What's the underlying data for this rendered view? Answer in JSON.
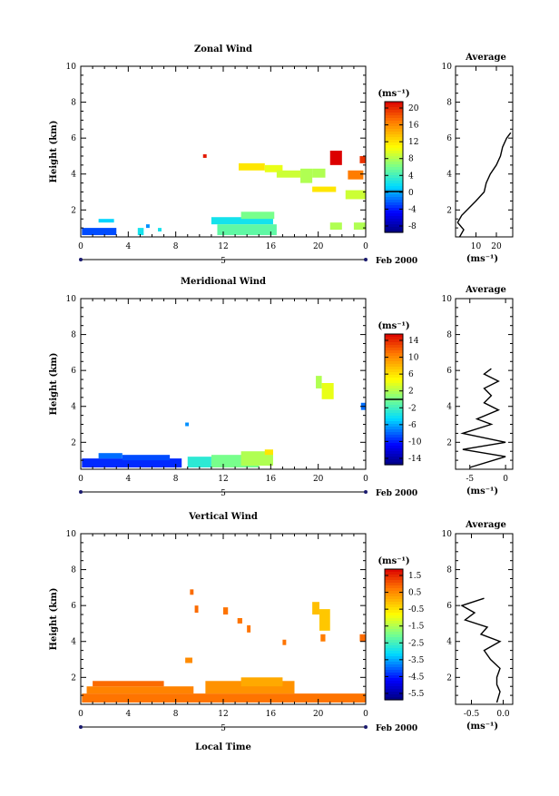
{
  "chart_data": [
    {
      "type": "heatmap",
      "title": "Zonal Wind",
      "xlabel": "",
      "ylabel": "Height (km)",
      "xlim": [
        0,
        24
      ],
      "ylim": [
        0.5,
        10
      ],
      "xticks": [
        "0",
        "4",
        "8",
        "12",
        "16",
        "20",
        "0"
      ],
      "yticks": [
        "2",
        "4",
        "6",
        "8",
        "10"
      ],
      "date_axis": {
        "start_label": "5",
        "end_label": "Feb 2000"
      },
      "colorbar": {
        "unit": "(ms⁻¹)",
        "min": -10,
        "max": 22,
        "ticks": [
          "20",
          "16",
          "12",
          "8",
          "4",
          "0",
          "-4",
          "-8"
        ],
        "mark": 0
      },
      "cells": [
        {
          "x0": 0.1,
          "x1": 3.0,
          "y0": 0.6,
          "y1": 1.0,
          "v": -3
        },
        {
          "x0": 1.5,
          "x1": 2.8,
          "y0": 1.3,
          "y1": 1.5,
          "v": 1
        },
        {
          "x0": 4.8,
          "x1": 5.3,
          "y0": 0.6,
          "y1": 1.0,
          "v": 2
        },
        {
          "x0": 5.5,
          "x1": 5.8,
          "y0": 1.0,
          "y1": 1.2,
          "v": -1
        },
        {
          "x0": 6.5,
          "x1": 6.8,
          "y0": 0.8,
          "y1": 1.0,
          "v": 2
        },
        {
          "x0": 10.3,
          "x1": 10.6,
          "y0": 4.9,
          "y1": 5.1,
          "v": 21
        },
        {
          "x0": 11.0,
          "x1": 16.2,
          "y0": 1.2,
          "y1": 1.6,
          "v": 2
        },
        {
          "x0": 11.5,
          "x1": 16.5,
          "y0": 0.6,
          "y1": 1.2,
          "v": 5
        },
        {
          "x0": 13.5,
          "x1": 16.3,
          "y0": 1.5,
          "y1": 1.9,
          "v": 6
        },
        {
          "x0": 13.3,
          "x1": 15.5,
          "y0": 4.2,
          "y1": 4.6,
          "v": 12
        },
        {
          "x0": 15.5,
          "x1": 17.0,
          "y0": 4.1,
          "y1": 4.5,
          "v": 10
        },
        {
          "x0": 16.5,
          "x1": 18.5,
          "y0": 3.8,
          "y1": 4.2,
          "v": 9
        },
        {
          "x0": 18.5,
          "x1": 19.5,
          "y0": 3.5,
          "y1": 4.3,
          "v": 8
        },
        {
          "x0": 19.5,
          "x1": 20.6,
          "y0": 3.8,
          "y1": 4.3,
          "v": 8
        },
        {
          "x0": 19.5,
          "x1": 21.5,
          "y0": 3.0,
          "y1": 3.3,
          "v": 12
        },
        {
          "x0": 21.0,
          "x1": 22.0,
          "y0": 4.5,
          "y1": 5.3,
          "v": 22
        },
        {
          "x0": 22.5,
          "x1": 23.8,
          "y0": 3.7,
          "y1": 4.2,
          "v": 17
        },
        {
          "x0": 23.5,
          "x1": 24.0,
          "y0": 4.6,
          "y1": 5.0,
          "v": 20
        },
        {
          "x0": 22.3,
          "x1": 24.0,
          "y0": 2.6,
          "y1": 3.1,
          "v": 9
        },
        {
          "x0": 21.0,
          "x1": 22.0,
          "y0": 0.9,
          "y1": 1.3,
          "v": 8
        },
        {
          "x0": 23.0,
          "x1": 24.0,
          "y0": 0.9,
          "y1": 1.3,
          "v": 8
        }
      ],
      "profile": {
        "title": "Average",
        "unit": "(ms⁻¹)",
        "xlim": [
          0,
          28
        ],
        "xticks": [
          "10",
          "20"
        ],
        "height": [
          0.5,
          0.9,
          1.3,
          1.7,
          2.5,
          3.0,
          3.5,
          4.0,
          4.5,
          5.0,
          5.5,
          6.0,
          6.3
        ],
        "speed": [
          2,
          4,
          1,
          3,
          10,
          14,
          15,
          17,
          20,
          22,
          23,
          25,
          27
        ]
      }
    },
    {
      "type": "heatmap",
      "title": "Meridional Wind",
      "xlabel": "",
      "ylabel": "Height (km)",
      "xlim": [
        0,
        24
      ],
      "ylim": [
        0.5,
        10
      ],
      "xticks": [
        "0",
        "4",
        "8",
        "12",
        "16",
        "20",
        "0"
      ],
      "yticks": [
        "2",
        "4",
        "6",
        "8",
        "10"
      ],
      "date_axis": {
        "start_label": "5",
        "end_label": "Feb 2000"
      },
      "colorbar": {
        "unit": "(ms⁻¹)",
        "min": -16,
        "max": 16,
        "ticks": [
          "14",
          "10",
          "6",
          "2",
          "-2",
          "-6",
          "-10",
          "-14"
        ],
        "mark": 0
      },
      "cells": [
        {
          "x0": 0.1,
          "x1": 8.5,
          "y0": 0.6,
          "y1": 1.1,
          "v": -10
        },
        {
          "x0": 1.5,
          "x1": 3.5,
          "y0": 1.1,
          "y1": 1.4,
          "v": -8
        },
        {
          "x0": 3.5,
          "x1": 7.5,
          "y0": 1.0,
          "y1": 1.3,
          "v": -9
        },
        {
          "x0": 8.8,
          "x1": 9.1,
          "y0": 2.9,
          "y1": 3.1,
          "v": -7
        },
        {
          "x0": 9.0,
          "x1": 11.0,
          "y0": 0.6,
          "y1": 1.2,
          "v": -3
        },
        {
          "x0": 11.0,
          "x1": 15.0,
          "y0": 0.6,
          "y1": 1.3,
          "v": 0
        },
        {
          "x0": 13.5,
          "x1": 16.2,
          "y0": 0.7,
          "y1": 1.5,
          "v": 2
        },
        {
          "x0": 15.5,
          "x1": 16.2,
          "y0": 1.3,
          "y1": 1.6,
          "v": 6
        },
        {
          "x0": 19.8,
          "x1": 20.3,
          "y0": 5.0,
          "y1": 5.7,
          "v": 2
        },
        {
          "x0": 20.3,
          "x1": 21.3,
          "y0": 4.4,
          "y1": 5.3,
          "v": 4
        },
        {
          "x0": 23.6,
          "x1": 24.0,
          "y0": 3.8,
          "y1": 4.2,
          "v": -8
        }
      ],
      "profile": {
        "title": "Average",
        "unit": "(ms⁻¹)",
        "xlim": [
          -7,
          1
        ],
        "xticks": [
          "-5",
          "0"
        ],
        "height": [
          0.6,
          1.2,
          1.6,
          2.0,
          2.5,
          3.0,
          3.3,
          3.8,
          4.2,
          4.6,
          5.0,
          5.4,
          5.8,
          6.1
        ],
        "speed": [
          -5,
          0,
          -6,
          0,
          -6,
          -2,
          -4,
          -1,
          -3,
          -2,
          -3,
          -1,
          -3,
          -2
        ]
      }
    },
    {
      "type": "heatmap",
      "title": "Vertical Wind",
      "xlabel": "Local Time",
      "ylabel": "Height (km)",
      "xlim": [
        0,
        24
      ],
      "ylim": [
        0.5,
        10
      ],
      "xticks": [
        "0",
        "4",
        "8",
        "12",
        "16",
        "20",
        "0"
      ],
      "yticks": [
        "2",
        "4",
        "6",
        "8",
        "10"
      ],
      "date_axis": {
        "start_label": "5",
        "end_label": "Feb 2000"
      },
      "colorbar": {
        "unit": "(ms⁻¹)",
        "min": -7,
        "max": 2,
        "ticks": [
          "1.5",
          "0.5",
          "-0.5",
          "-1.5",
          "-2.5",
          "-3.5",
          "-4.5",
          "-5.5"
        ],
        "mark": null
      },
      "cells": [
        {
          "x0": 0.1,
          "x1": 24.0,
          "y0": 0.6,
          "y1": 1.1,
          "v": 0.7
        },
        {
          "x0": 0.5,
          "x1": 9.5,
          "y0": 1.1,
          "y1": 1.5,
          "v": 0.5
        },
        {
          "x0": 1.0,
          "x1": 7.0,
          "y0": 1.5,
          "y1": 1.8,
          "v": 0.8
        },
        {
          "x0": 10.5,
          "x1": 18.0,
          "y0": 1.1,
          "y1": 1.8,
          "v": 0.3
        },
        {
          "x0": 13.5,
          "x1": 17.0,
          "y0": 1.5,
          "y1": 2.0,
          "v": 0.0
        },
        {
          "x0": 8.8,
          "x1": 9.4,
          "y0": 2.8,
          "y1": 3.1,
          "v": 0.4
        },
        {
          "x0": 9.2,
          "x1": 9.5,
          "y0": 6.6,
          "y1": 6.9,
          "v": 0.8
        },
        {
          "x0": 9.6,
          "x1": 9.9,
          "y0": 5.6,
          "y1": 6.0,
          "v": 0.8
        },
        {
          "x0": 12.0,
          "x1": 12.4,
          "y0": 5.5,
          "y1": 5.9,
          "v": 0.7
        },
        {
          "x0": 13.2,
          "x1": 13.6,
          "y0": 5.0,
          "y1": 5.3,
          "v": 0.7
        },
        {
          "x0": 14.0,
          "x1": 14.3,
          "y0": 4.5,
          "y1": 4.9,
          "v": 0.7
        },
        {
          "x0": 17.0,
          "x1": 17.3,
          "y0": 3.8,
          "y1": 4.1,
          "v": 0.7
        },
        {
          "x0": 19.5,
          "x1": 20.1,
          "y0": 5.5,
          "y1": 6.2,
          "v": -0.3
        },
        {
          "x0": 20.1,
          "x1": 21.0,
          "y0": 4.6,
          "y1": 5.8,
          "v": -0.4
        },
        {
          "x0": 20.2,
          "x1": 20.6,
          "y0": 4.0,
          "y1": 4.4,
          "v": 0.6
        },
        {
          "x0": 23.5,
          "x1": 24.0,
          "y0": 4.0,
          "y1": 4.4,
          "v": 0.8
        }
      ],
      "profile": {
        "title": "Average",
        "unit": "(ms⁻¹)",
        "xlim": [
          -0.75,
          0.15
        ],
        "xticks": [
          "-0.5",
          "0.0"
        ],
        "height": [
          0.6,
          1.2,
          1.6,
          2.0,
          2.5,
          3.0,
          3.5,
          4.0,
          4.4,
          4.8,
          5.2,
          5.6,
          6.0,
          6.4
        ],
        "speed": [
          -0.1,
          -0.05,
          -0.1,
          -0.1,
          -0.05,
          -0.2,
          -0.3,
          -0.05,
          -0.35,
          -0.25,
          -0.6,
          -0.45,
          -0.65,
          -0.3
        ]
      }
    }
  ]
}
